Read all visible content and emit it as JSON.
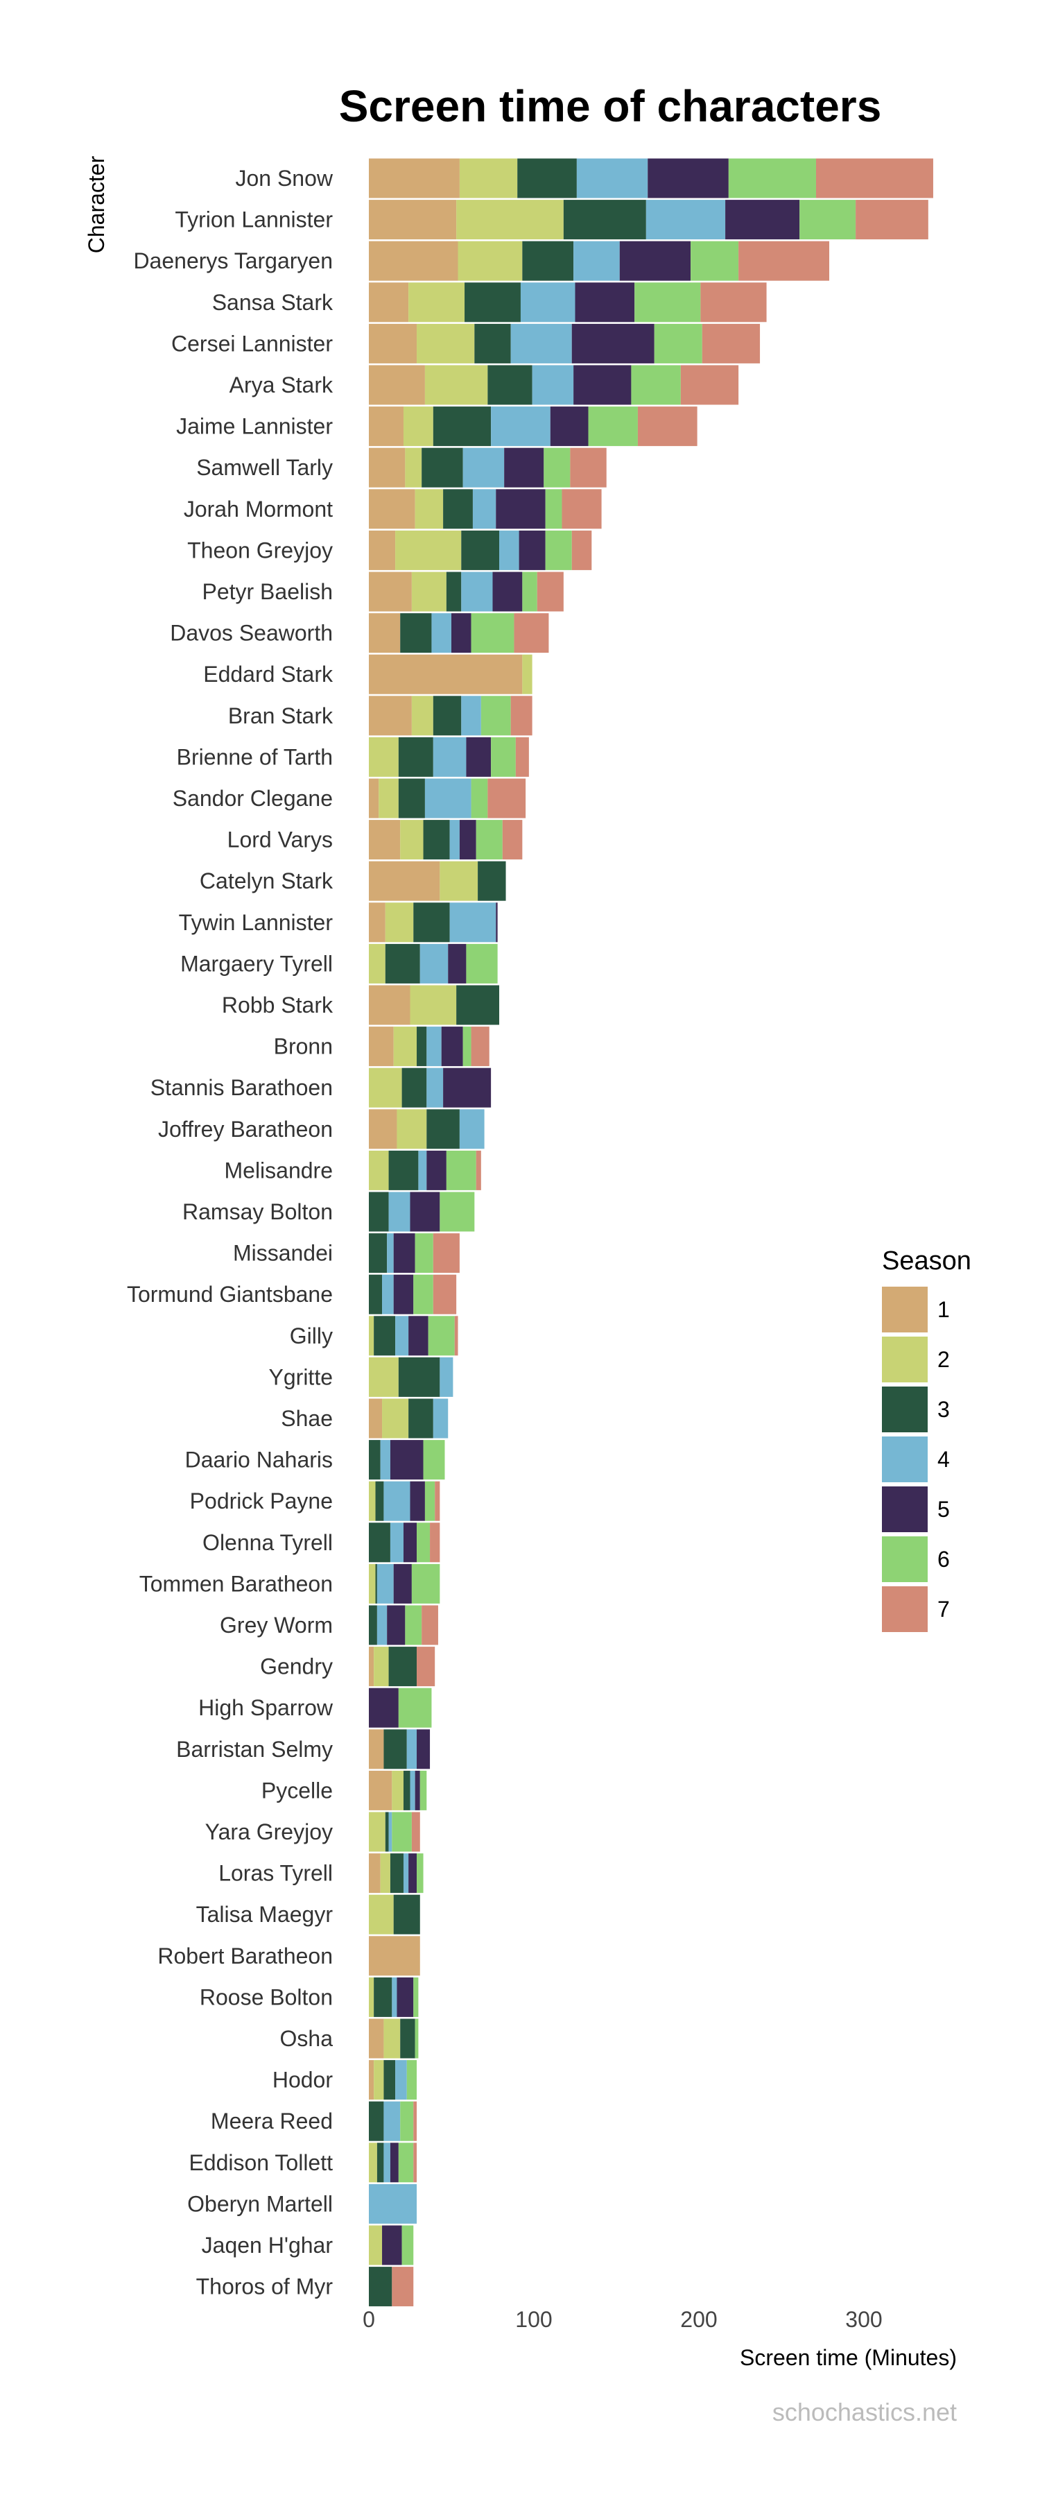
{
  "chart_data": {
    "type": "bar",
    "orientation": "horizontal",
    "stacked": true,
    "title": "Screen time of characters",
    "xlabel": "Screen time (Minutes)",
    "ylabel": "Character",
    "xlim": [
      0,
      345
    ],
    "xticks": [
      "0",
      "100",
      "200",
      "300"
    ],
    "grid": false,
    "legend_position": "right",
    "legend_title": "Season",
    "caption": "schochastics.net",
    "series": [
      {
        "name": "1",
        "color": "#d3aa74"
      },
      {
        "name": "2",
        "color": "#c8d374"
      },
      {
        "name": "3",
        "color": "#285640"
      },
      {
        "name": "4",
        "color": "#76b7d3"
      },
      {
        "name": "5",
        "color": "#3c2a56"
      },
      {
        "name": "6",
        "color": "#8ed374"
      },
      {
        "name": "7",
        "color": "#d38a76"
      }
    ],
    "characters": [
      {
        "name": "Jon Snow",
        "values": [
          55,
          35,
          36,
          43,
          49,
          53,
          71
        ]
      },
      {
        "name": "Tyrion Lannister",
        "values": [
          53,
          65,
          50,
          48,
          45,
          34,
          44
        ]
      },
      {
        "name": "Daenerys Targaryen",
        "values": [
          54,
          39,
          31,
          28,
          43,
          29,
          55
        ]
      },
      {
        "name": "Sansa Stark",
        "values": [
          24,
          34,
          34,
          33,
          36,
          40,
          40
        ]
      },
      {
        "name": "Cersei Lannister",
        "values": [
          29,
          35,
          22,
          37,
          50,
          29,
          35
        ]
      },
      {
        "name": "Arya Stark",
        "values": [
          34,
          38,
          27,
          25,
          35,
          30,
          35
        ]
      },
      {
        "name": "Jaime Lannister",
        "values": [
          21,
          18,
          35,
          36,
          23,
          30,
          36
        ]
      },
      {
        "name": "Samwell Tarly",
        "values": [
          22,
          10,
          25,
          25,
          24,
          16,
          22
        ]
      },
      {
        "name": "Jorah Mormont",
        "values": [
          28,
          17,
          18,
          14,
          30,
          10,
          24
        ]
      },
      {
        "name": "Theon Greyjoy",
        "values": [
          16,
          40,
          23,
          12,
          16,
          16,
          12
        ]
      },
      {
        "name": "Petyr Baelish",
        "values": [
          26,
          21,
          9,
          19,
          18,
          9,
          16
        ]
      },
      {
        "name": "Davos Seaworth",
        "values": [
          19,
          0,
          19,
          12,
          12,
          26,
          21
        ]
      },
      {
        "name": "Eddard Stark",
        "values": [
          93,
          6,
          0,
          0,
          0,
          0,
          0
        ]
      },
      {
        "name": "Bran Stark",
        "values": [
          26,
          13,
          17,
          12,
          0,
          18,
          13
        ]
      },
      {
        "name": "Brienne of Tarth",
        "values": [
          0,
          18,
          21,
          20,
          15,
          15,
          8
        ]
      },
      {
        "name": "Sandor Clegane",
        "values": [
          6,
          12,
          16,
          28,
          0,
          10,
          23
        ]
      },
      {
        "name": "Lord Varys",
        "values": [
          19,
          14,
          16,
          6,
          10,
          16,
          12
        ]
      },
      {
        "name": "Catelyn Stark",
        "values": [
          43,
          23,
          17,
          0,
          0,
          0,
          0
        ]
      },
      {
        "name": "Tywin Lannister",
        "values": [
          10,
          17,
          22,
          28,
          1,
          0,
          0
        ]
      },
      {
        "name": "Margaery Tyrell",
        "values": [
          0,
          10,
          21,
          17,
          11,
          19,
          0
        ]
      },
      {
        "name": "Robb Stark",
        "values": [
          25,
          28,
          26,
          0,
          0,
          0,
          0
        ]
      },
      {
        "name": "Bronn",
        "values": [
          15,
          14,
          6,
          9,
          13,
          5,
          11
        ]
      },
      {
        "name": "Stannis Barathoen",
        "values": [
          0,
          20,
          15,
          10,
          29,
          0,
          0
        ]
      },
      {
        "name": "Joffrey Baratheon",
        "values": [
          17,
          18,
          20,
          15,
          0,
          0,
          0
        ]
      },
      {
        "name": "Melisandre",
        "values": [
          0,
          12,
          18,
          5,
          12,
          18,
          3
        ]
      },
      {
        "name": "Ramsay Bolton",
        "values": [
          0,
          0,
          12,
          13,
          18,
          21,
          0
        ]
      },
      {
        "name": "Missandei",
        "values": [
          0,
          0,
          11,
          4,
          13,
          11,
          16
        ]
      },
      {
        "name": "Tormund Giantsbane",
        "values": [
          0,
          0,
          8,
          7,
          12,
          12,
          14
        ]
      },
      {
        "name": "Gilly",
        "values": [
          0,
          3,
          13,
          8,
          12,
          16,
          2
        ]
      },
      {
        "name": "Ygritte",
        "values": [
          0,
          18,
          25,
          8,
          0,
          0,
          0
        ]
      },
      {
        "name": "Shae",
        "values": [
          8,
          16,
          15,
          9,
          0,
          0,
          0
        ]
      },
      {
        "name": "Daario Naharis",
        "values": [
          0,
          0,
          7,
          6,
          20,
          13,
          0
        ]
      },
      {
        "name": "Podrick Payne",
        "values": [
          0,
          4,
          5,
          16,
          9,
          6,
          3
        ]
      },
      {
        "name": "Olenna Tyrell",
        "values": [
          0,
          0,
          13,
          8,
          8,
          8,
          6
        ]
      },
      {
        "name": "Tommen Baratheon",
        "values": [
          0,
          4,
          1,
          10,
          11,
          17,
          0
        ]
      },
      {
        "name": "Grey Worm",
        "values": [
          0,
          0,
          5,
          6,
          11,
          10,
          10
        ]
      },
      {
        "name": "Gendry",
        "values": [
          3,
          9,
          17,
          0,
          0,
          0,
          11
        ]
      },
      {
        "name": "High Sparrow",
        "values": [
          0,
          0,
          0,
          0,
          18,
          20,
          0
        ]
      },
      {
        "name": "Barristan Selmy",
        "values": [
          9,
          0,
          14,
          6,
          8,
          0,
          0
        ]
      },
      {
        "name": "Pycelle",
        "values": [
          14,
          7,
          4,
          3,
          3,
          4,
          0
        ]
      },
      {
        "name": "Yara Greyjoy",
        "values": [
          0,
          10,
          2,
          2,
          0,
          12,
          5
        ]
      },
      {
        "name": "Loras Tyrell",
        "values": [
          7,
          6,
          8,
          3,
          5,
          4,
          0
        ]
      },
      {
        "name": "Talisa Maegyr",
        "values": [
          0,
          15,
          16,
          0,
          0,
          0,
          0
        ]
      },
      {
        "name": "Robert Baratheon",
        "values": [
          31,
          0,
          0,
          0,
          0,
          0,
          0
        ]
      },
      {
        "name": "Roose Bolton",
        "values": [
          0,
          3,
          11,
          3,
          10,
          3,
          0
        ]
      },
      {
        "name": "Osha",
        "values": [
          9,
          10,
          9,
          0,
          0,
          2,
          0
        ]
      },
      {
        "name": "Hodor",
        "values": [
          3,
          6,
          7,
          7,
          0,
          6,
          0
        ]
      },
      {
        "name": "Meera Reed",
        "values": [
          0,
          0,
          9,
          10,
          0,
          8,
          2
        ]
      },
      {
        "name": "Eddison Tollett",
        "values": [
          0,
          5,
          4,
          4,
          5,
          9,
          2
        ]
      },
      {
        "name": "Oberyn Martell",
        "values": [
          0,
          0,
          0,
          29,
          0,
          0,
          0
        ]
      },
      {
        "name": "Jaqen H'ghar",
        "values": [
          0,
          8,
          0,
          0,
          12,
          7,
          0
        ]
      },
      {
        "name": "Thoros of Myr",
        "values": [
          0,
          0,
          14,
          0,
          0,
          0,
          13
        ]
      }
    ]
  }
}
